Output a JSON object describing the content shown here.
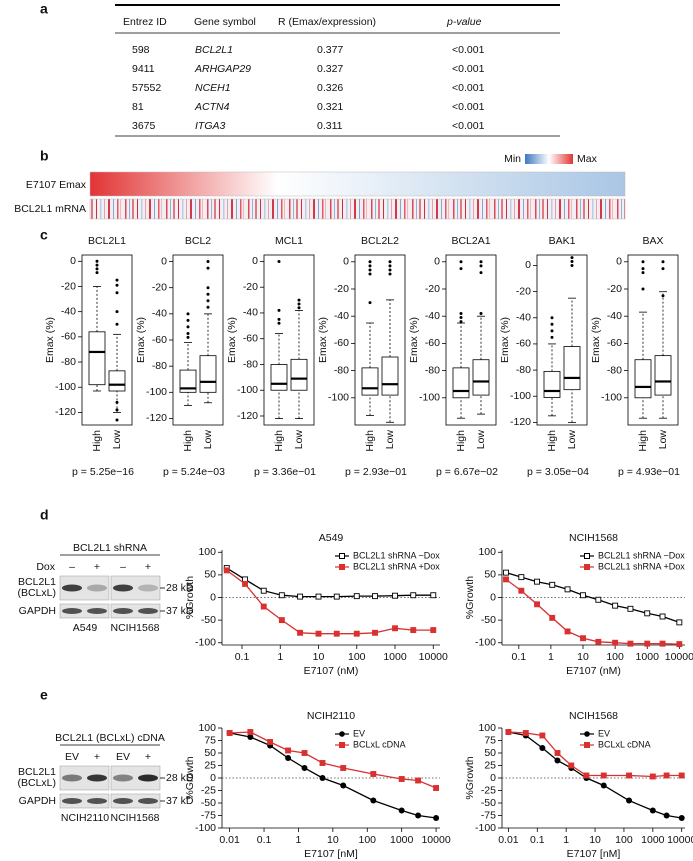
{
  "panel_a": {
    "label": "a",
    "table": {
      "header": [
        "Entrez ID",
        "Gene symbol",
        "R (Emax/expression)",
        "p-value"
      ],
      "rows": [
        [
          "598",
          "BCL2L1",
          "0.377",
          "<0.001"
        ],
        [
          "9411",
          "ARHGAP29",
          "0.327",
          "<0.001"
        ],
        [
          "57552",
          "NCEH1",
          "0.326",
          "<0.001"
        ],
        [
          "81",
          "ACTN4",
          "0.321",
          "<0.001"
        ],
        [
          "3675",
          "ITGA3",
          "0.311",
          "<0.001"
        ]
      ]
    }
  },
  "panel_b": {
    "label": "b",
    "rows": [
      "E7107 Emax",
      "BCL2L1 mRNA"
    ],
    "legend": [
      "Min",
      "Max"
    ]
  },
  "panel_c": {
    "label": "c",
    "ylabel": "Emax (%)",
    "plots": [
      {
        "title": "BCL2L1",
        "categories": [
          "High",
          "Low"
        ],
        "ylim": [
          -130,
          5
        ],
        "yticks": [
          0,
          -20,
          -40,
          -60,
          -80,
          -100,
          -120
        ],
        "pvalue": "p = 5.25e−16",
        "boxes": [
          {
            "whisker_low": -103,
            "q1": -98,
            "median": -72,
            "q3": -56,
            "whisker_high": -20,
            "outliers": [
              0,
              -3,
              -6,
              -9
            ]
          },
          {
            "whisker_low": -120,
            "q1": -103,
            "median": -98,
            "q3": -87,
            "whisker_high": -58,
            "outliers": [
              -15,
              -19,
              -25,
              -40,
              -50,
              -112,
              -118,
              -126
            ]
          }
        ]
      },
      {
        "title": "BCL2",
        "categories": [
          "High",
          "Low"
        ],
        "ylim": [
          -125,
          5
        ],
        "yticks": [
          0,
          -20,
          -40,
          -60,
          -80,
          -100,
          -120
        ],
        "pvalue": "p = 5.24e−03",
        "boxes": [
          {
            "whisker_low": -110,
            "q1": -100,
            "median": -97,
            "q3": -83,
            "whisker_high": -62,
            "outliers": [
              -40,
              -45,
              -50,
              -55,
              -58
            ]
          },
          {
            "whisker_low": -108,
            "q1": -100,
            "median": -92,
            "q3": -72,
            "whisker_high": -40,
            "outliers": [
              0,
              -5,
              -20,
              -25,
              -30,
              -35
            ]
          }
        ]
      },
      {
        "title": "MCL1",
        "categories": [
          "High",
          "Low"
        ],
        "ylim": [
          -127,
          5
        ],
        "yticks": [
          0,
          -20,
          -40,
          -60,
          -80,
          -100,
          -120
        ],
        "pvalue": "p = 3.36e−01",
        "boxes": [
          {
            "whisker_low": -122,
            "q1": -100,
            "median": -95,
            "q3": -80,
            "whisker_high": -56,
            "outliers": [
              0,
              -38,
              -45,
              -48
            ]
          },
          {
            "whisker_low": -122,
            "q1": -100,
            "median": -91,
            "q3": -76,
            "whisker_high": -38,
            "outliers": [
              -30,
              -33,
              -36
            ]
          }
        ]
      },
      {
        "title": "BCL2L2",
        "categories": [
          "High",
          "Low"
        ],
        "ylim": [
          -120,
          5
        ],
        "yticks": [
          0,
          -20,
          -40,
          -60,
          -80,
          -100
        ],
        "pvalue": "p = 2.93e−01",
        "boxes": [
          {
            "whisker_low": -113,
            "q1": -98,
            "median": -93,
            "q3": -78,
            "whisker_high": -45,
            "outliers": [
              0,
              -3,
              -6,
              -9,
              -30
            ]
          },
          {
            "whisker_low": -118,
            "q1": -98,
            "median": -90,
            "q3": -70,
            "whisker_high": -28,
            "outliers": [
              0,
              -3,
              -6,
              -9
            ]
          }
        ]
      },
      {
        "title": "BCL2A1",
        "categories": [
          "High",
          "Low"
        ],
        "ylim": [
          -120,
          5
        ],
        "yticks": [
          0,
          -20,
          -40,
          -60,
          -80,
          -100
        ],
        "pvalue": "p = 6.67e−02",
        "boxes": [
          {
            "whisker_low": -115,
            "q1": -100,
            "median": -95,
            "q3": -78,
            "whisker_high": -45,
            "outliers": [
              0,
              -5,
              -38,
              -41,
              -44
            ]
          },
          {
            "whisker_low": -112,
            "q1": -98,
            "median": -88,
            "q3": -72,
            "whisker_high": -40,
            "outliers": [
              0,
              -3,
              -8,
              -38
            ]
          }
        ]
      },
      {
        "title": "BAK1",
        "categories": [
          "High",
          "Low"
        ],
        "ylim": [
          -122,
          8
        ],
        "yticks": [
          0,
          -20,
          -40,
          -60,
          -80,
          -100,
          -120
        ],
        "pvalue": "p = 3.05e−04",
        "boxes": [
          {
            "whisker_low": -115,
            "q1": -101,
            "median": -96,
            "q3": -81,
            "whisker_high": -60,
            "outliers": [
              -40,
              -45,
              -50,
              -55
            ]
          },
          {
            "whisker_low": -120,
            "q1": -95,
            "median": -86,
            "q3": -62,
            "whisker_high": -25,
            "outliers": [
              0,
              3,
              6
            ]
          }
        ]
      },
      {
        "title": "BAX",
        "categories": [
          "High",
          "Low"
        ],
        "ylim": [
          -120,
          5
        ],
        "yticks": [
          0,
          -20,
          -40,
          -60,
          -80,
          -100
        ],
        "pvalue": "p = 4.93e−01",
        "boxes": [
          {
            "whisker_low": -115,
            "q1": -100,
            "median": -92,
            "q3": -72,
            "whisker_high": -37,
            "outliers": [
              0,
              -5,
              -8,
              -20
            ]
          },
          {
            "whisker_low": -115,
            "q1": -98,
            "median": -88,
            "q3": -69,
            "whisker_high": -22,
            "outliers": [
              0,
              -5,
              -25
            ]
          }
        ]
      }
    ]
  },
  "panel_d": {
    "label": "d",
    "blot": {
      "header": "BCL2L1 shRNA",
      "condition": "Dox",
      "lanes": [
        "–",
        "+",
        "–",
        "+"
      ],
      "rows": [
        "BCL2L1",
        "(BCLxL)",
        "GAPDH"
      ],
      "sizes": [
        "28 kD",
        "37 kD"
      ],
      "cells": [
        "A549",
        "NCIH1568"
      ]
    },
    "charts": [
      {
        "type": "line",
        "title": "A549",
        "xlabel": "E7107 (nM)",
        "ylabel": "%Growth",
        "log_x": true,
        "x": [
          0.04,
          0.12,
          0.37,
          1.1,
          3.3,
          10,
          30,
          100,
          300,
          1000,
          3000,
          10000
        ],
        "xlim": [
          0.03,
          15000
        ],
        "xticks": [
          0.1,
          1,
          10,
          100,
          1000,
          10000
        ],
        "ylim": [
          -105,
          105
        ],
        "yticks": [
          -100,
          -50,
          0,
          50,
          100
        ],
        "hline": 0,
        "legend": "upper right",
        "series": [
          {
            "name": "BCL2L1 shRNA −Dox",
            "color": "#000000",
            "marker": "open-square",
            "values": [
              65,
              40,
              15,
              5,
              2,
              2,
              2,
              3,
              3,
              4,
              5,
              5
            ]
          },
          {
            "name": "BCL2L1 shRNA +Dox",
            "color": "#d93030",
            "marker": "square",
            "values": [
              60,
              30,
              -20,
              -50,
              -78,
              -80,
              -80,
              -80,
              -78,
              -68,
              -72,
              -72
            ]
          }
        ]
      },
      {
        "type": "line",
        "title": "NCIH1568",
        "xlabel": "E7107 (nM)",
        "ylabel": "%Growth",
        "log_x": true,
        "x": [
          0.04,
          0.12,
          0.37,
          1.1,
          3.3,
          10,
          30,
          100,
          300,
          1000,
          3000,
          10000
        ],
        "xlim": [
          0.03,
          15000
        ],
        "xticks": [
          0.1,
          1,
          10,
          100,
          1000,
          10000
        ],
        "ylim": [
          -105,
          105
        ],
        "yticks": [
          -100,
          -50,
          0,
          50,
          100
        ],
        "hline": 0,
        "legend": "upper right",
        "series": [
          {
            "name": "BCL2L1 shRNA −Dox",
            "color": "#000000",
            "marker": "open-square",
            "values": [
              55,
              45,
              35,
              28,
              18,
              5,
              -5,
              -18,
              -25,
              -35,
              -42,
              -55
            ]
          },
          {
            "name": "BCL2L1 shRNA +Dox",
            "color": "#d93030",
            "marker": "square",
            "values": [
              40,
              15,
              -15,
              -45,
              -75,
              -90,
              -98,
              -100,
              -102,
              -102,
              -102,
              -103
            ]
          }
        ]
      }
    ]
  },
  "panel_e": {
    "label": "e",
    "blot": {
      "header": "BCL2L1 (BCLxL) cDNA",
      "lanes": [
        "EV",
        "+",
        "EV",
        "+"
      ],
      "rows": [
        "BCL2L1",
        "(BCLxL)",
        "GAPDH"
      ],
      "sizes": [
        "28 kD",
        "37 kD"
      ],
      "cells": [
        "NCIH2110",
        "NCIH1568"
      ]
    },
    "charts": [
      {
        "type": "line",
        "title": "NCIH2110",
        "xlabel": "E7107 [nM]",
        "ylabel": "%Growth",
        "log_x": true,
        "x": [
          0.01,
          0.04,
          0.15,
          0.5,
          1.5,
          5,
          20,
          150,
          1000,
          3000,
          10000
        ],
        "xlim": [
          0.006,
          13000
        ],
        "xticks": [
          0.01,
          0.1,
          1,
          10,
          100,
          1000,
          10000
        ],
        "ylim": [
          -100,
          100
        ],
        "yticks": [
          -100,
          -75,
          -50,
          -25,
          0,
          25,
          50,
          75,
          100
        ],
        "hline": 0,
        "legend": "upper right",
        "series": [
          {
            "name": "EV",
            "color": "#000000",
            "marker": "circle",
            "values": [
              90,
              82,
              65,
              40,
              20,
              0,
              -15,
              -45,
              -65,
              -75,
              -80
            ]
          },
          {
            "name": "BCLxL cDNA",
            "color": "#d93030",
            "marker": "square",
            "values": [
              90,
              92,
              72,
              55,
              50,
              30,
              20,
              8,
              -2,
              -5,
              -20
            ]
          }
        ]
      },
      {
        "type": "line",
        "title": "NCIH1568",
        "xlabel": "E7107 [nM]",
        "ylabel": "%Growth",
        "log_x": true,
        "x": [
          0.01,
          0.04,
          0.15,
          0.5,
          1.5,
          5,
          20,
          150,
          1000,
          3000,
          10000
        ],
        "xlim": [
          0.006,
          13000
        ],
        "xticks": [
          0.01,
          0.1,
          1,
          10,
          100,
          1000,
          10000
        ],
        "ylim": [
          -100,
          100
        ],
        "yticks": [
          -100,
          -75,
          -50,
          -25,
          0,
          25,
          50,
          75,
          100
        ],
        "hline": 0,
        "legend": "upper right",
        "series": [
          {
            "name": "EV",
            "color": "#000000",
            "marker": "circle",
            "values": [
              92,
              85,
              60,
              35,
              20,
              0,
              -15,
              -45,
              -65,
              -75,
              -80
            ]
          },
          {
            "name": "BCLxL cDNA",
            "color": "#d93030",
            "marker": "square",
            "values": [
              92,
              90,
              85,
              50,
              25,
              5,
              5,
              5,
              3,
              5,
              5
            ]
          }
        ]
      }
    ]
  }
}
